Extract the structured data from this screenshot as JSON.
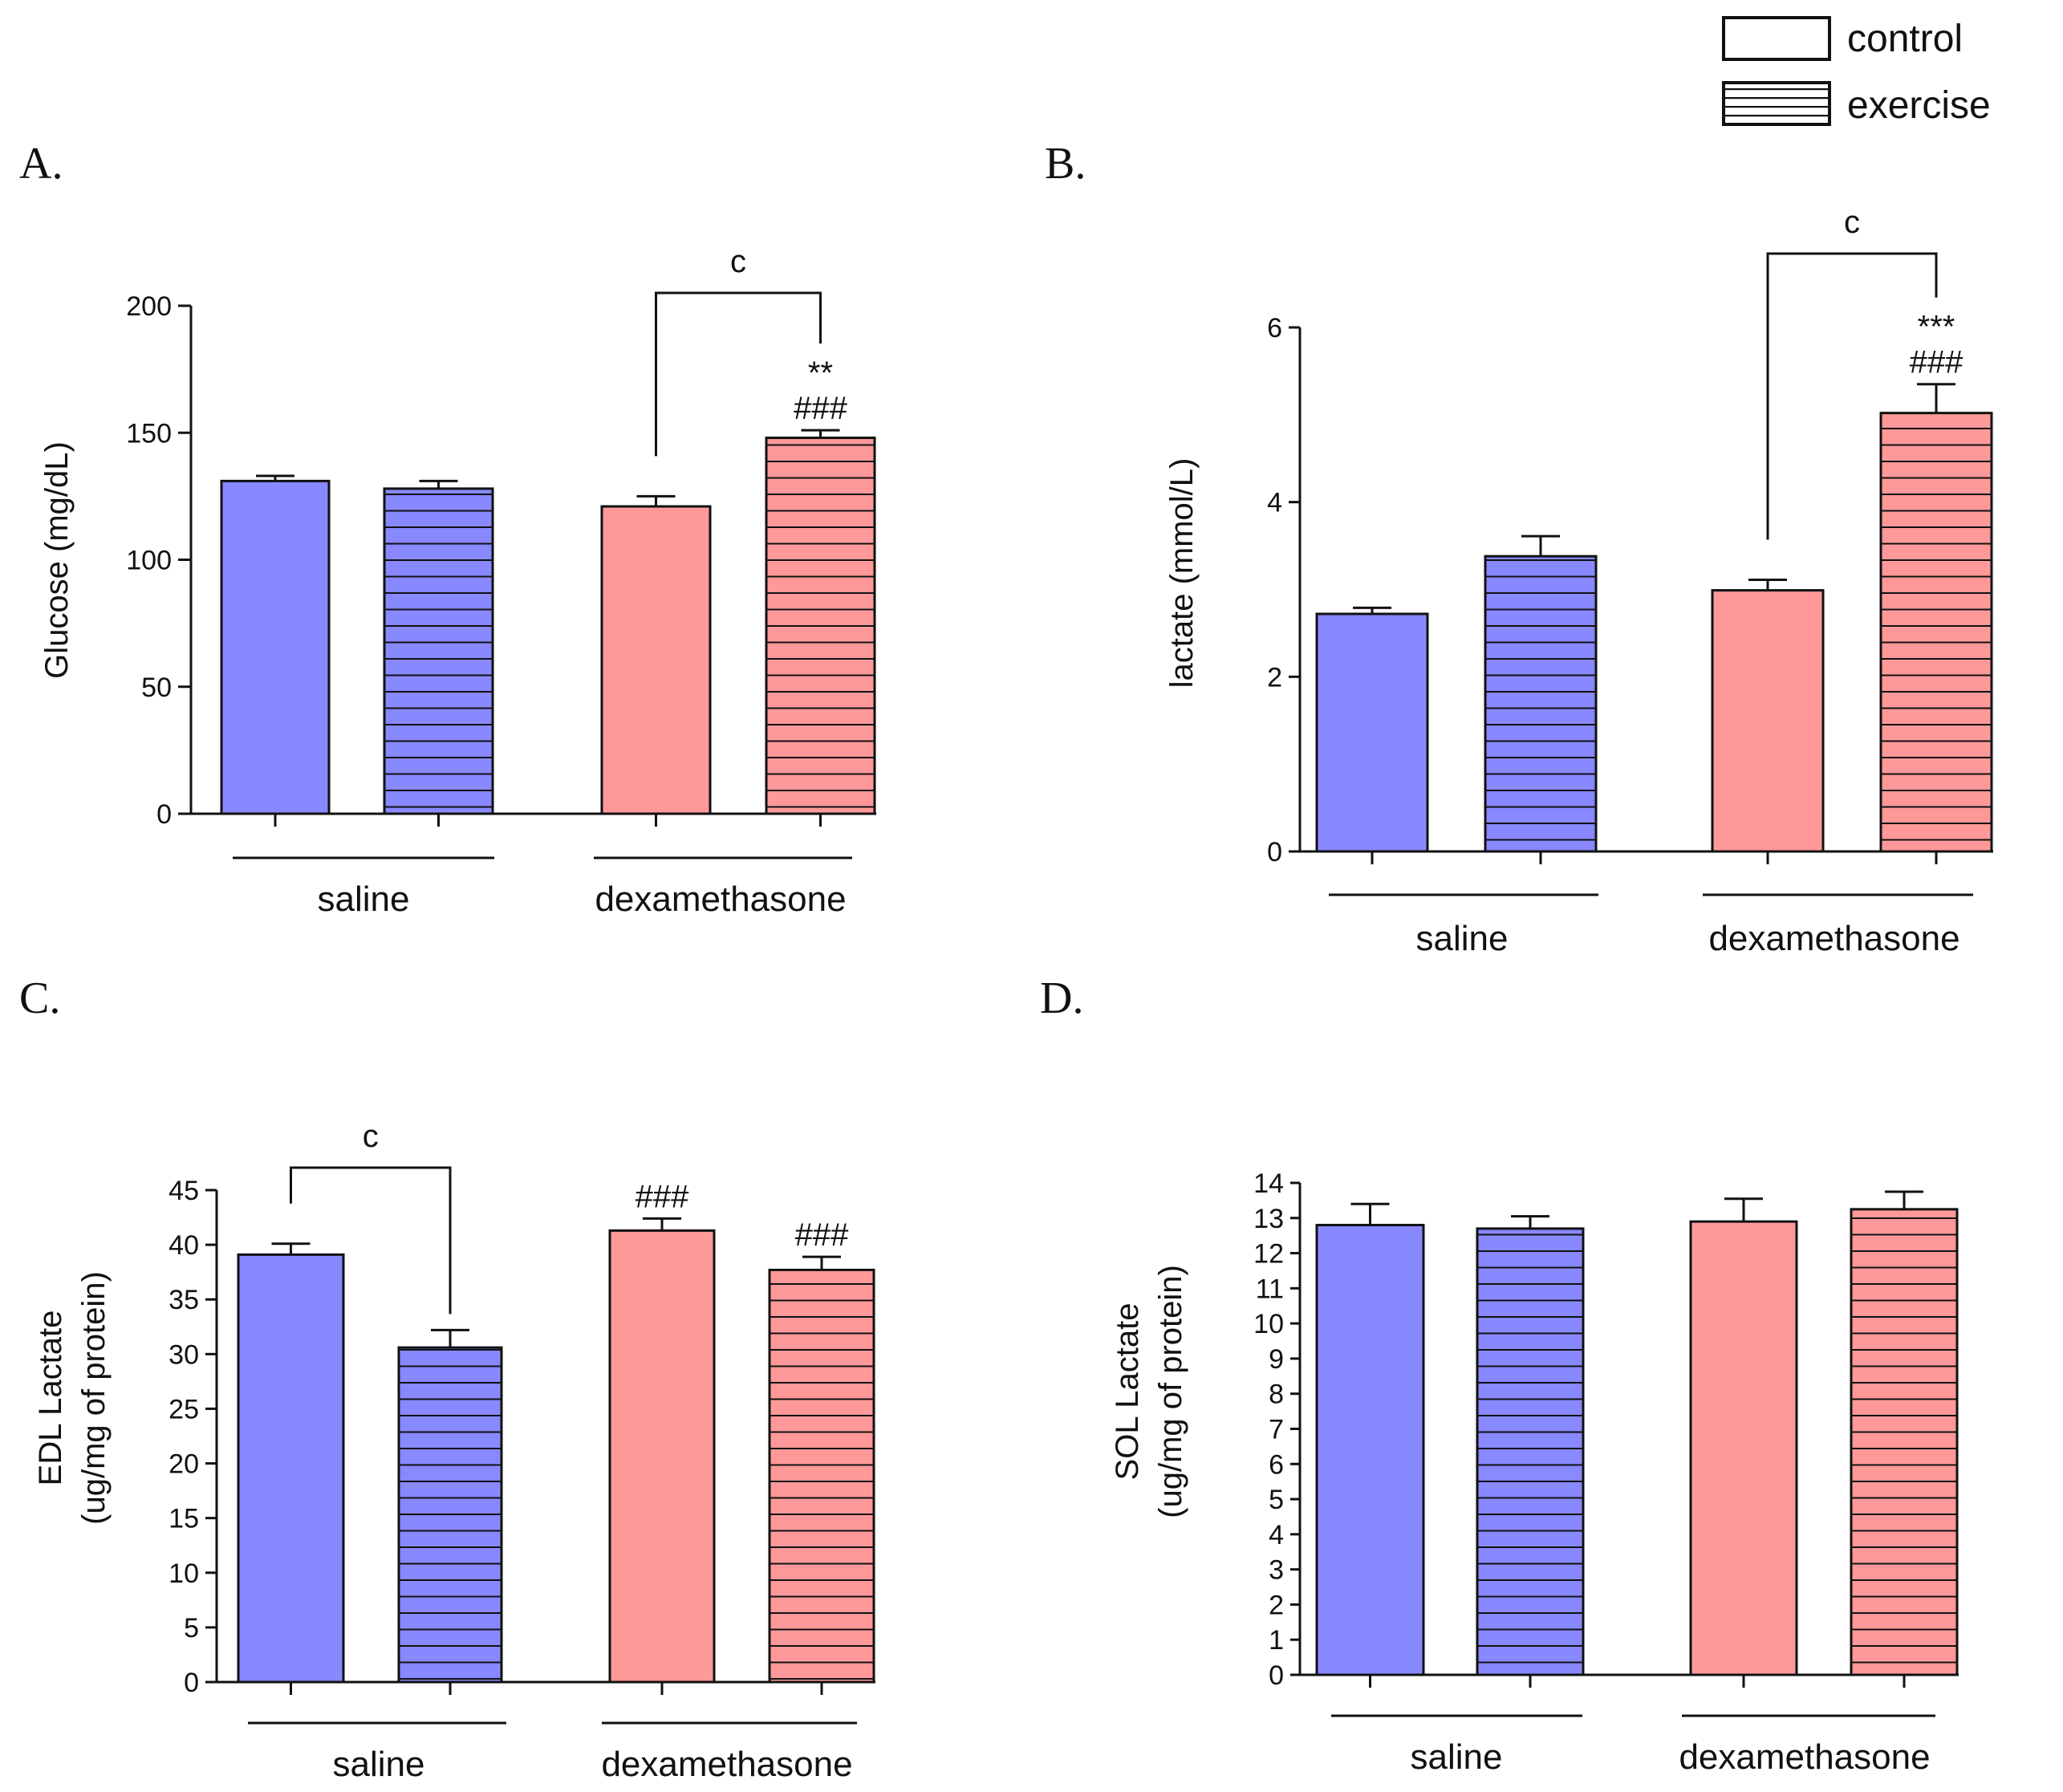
{
  "legend": {
    "items": [
      {
        "label": "control",
        "pattern": "solid"
      },
      {
        "label": "exercise",
        "pattern": "hatched"
      }
    ]
  },
  "colors": {
    "saline": "#8888ff",
    "dexamethasone": "#ff9999",
    "stroke": "#111111"
  },
  "groups": [
    "saline",
    "dexamethasone"
  ],
  "chart_data": [
    {
      "panel": "A.",
      "type": "bar",
      "ylabel": [
        "Glucose (mg/dL)"
      ],
      "ylim": [
        0,
        200
      ],
      "yticks": [
        0,
        50,
        100,
        150,
        200
      ],
      "groups": [
        "saline",
        "dexamethasone"
      ],
      "series": [
        {
          "name": "control"
        },
        {
          "name": "exercise"
        }
      ],
      "bars": [
        {
          "group": "saline",
          "series": "control",
          "value": 131,
          "error": 2
        },
        {
          "group": "saline",
          "series": "exercise",
          "value": 128,
          "error": 3
        },
        {
          "group": "dexamethasone",
          "series": "control",
          "value": 121,
          "error": 4
        },
        {
          "group": "dexamethasone",
          "series": "exercise",
          "value": 148,
          "error": 3
        }
      ],
      "annotations": [
        {
          "bar": 3,
          "lines": [
            "**",
            "###"
          ]
        }
      ],
      "brackets": [
        {
          "from": 2,
          "to": 3,
          "label": "c",
          "level": 200
        }
      ]
    },
    {
      "panel": "B.",
      "type": "bar",
      "ylabel": [
        "lactate (mmol/L)"
      ],
      "ylim": [
        0,
        6
      ],
      "yticks": [
        0,
        2,
        4,
        6
      ],
      "groups": [
        "saline",
        "dexamethasone"
      ],
      "series": [
        {
          "name": "control"
        },
        {
          "name": "exercise"
        }
      ],
      "bars": [
        {
          "group": "saline",
          "series": "control",
          "value": 2.72,
          "error": 0.07
        },
        {
          "group": "saline",
          "series": "exercise",
          "value": 3.38,
          "error": 0.23
        },
        {
          "group": "dexamethasone",
          "series": "control",
          "value": 2.99,
          "error": 0.12
        },
        {
          "group": "dexamethasone",
          "series": "exercise",
          "value": 5.02,
          "error": 0.33
        }
      ],
      "annotations": [
        {
          "bar": 3,
          "lines": [
            "***",
            "###"
          ]
        }
      ],
      "brackets": [
        {
          "from": 2,
          "to": 3,
          "label": "c",
          "level": 6.8
        }
      ]
    },
    {
      "panel": "C.",
      "type": "bar",
      "ylabel": [
        "EDL Lactate",
        "(ug/mg of protein)"
      ],
      "ylim": [
        0,
        45
      ],
      "yticks": [
        0,
        5,
        10,
        15,
        20,
        25,
        30,
        35,
        40,
        45
      ],
      "groups": [
        "saline",
        "dexamethasone"
      ],
      "series": [
        {
          "name": "control"
        },
        {
          "name": "exercise"
        }
      ],
      "bars": [
        {
          "group": "saline",
          "series": "control",
          "value": 39.1,
          "error": 1.0
        },
        {
          "group": "saline",
          "series": "exercise",
          "value": 30.6,
          "error": 1.6
        },
        {
          "group": "dexamethasone",
          "series": "control",
          "value": 41.3,
          "error": 1.1
        },
        {
          "group": "dexamethasone",
          "series": "exercise",
          "value": 37.7,
          "error": 1.2
        }
      ],
      "annotations": [
        {
          "bar": 2,
          "lines": [
            "###"
          ]
        },
        {
          "bar": 3,
          "lines": [
            "###"
          ]
        }
      ],
      "brackets": [
        {
          "from": 0,
          "to": 1,
          "label": "c",
          "level": 45
        }
      ]
    },
    {
      "panel": "D.",
      "type": "bar",
      "ylabel": [
        "SOL Lactate",
        "(ug/mg of protein)"
      ],
      "ylim": [
        0,
        14
      ],
      "yticks": [
        0,
        1,
        2,
        3,
        4,
        5,
        6,
        7,
        8,
        9,
        10,
        11,
        12,
        13,
        14
      ],
      "groups": [
        "saline",
        "dexamethasone"
      ],
      "series": [
        {
          "name": "control"
        },
        {
          "name": "exercise"
        }
      ],
      "bars": [
        {
          "group": "saline",
          "series": "control",
          "value": 12.8,
          "error": 0.6
        },
        {
          "group": "saline",
          "series": "exercise",
          "value": 12.7,
          "error": 0.35
        },
        {
          "group": "dexamethasone",
          "series": "control",
          "value": 12.9,
          "error": 0.65
        },
        {
          "group": "dexamethasone",
          "series": "exercise",
          "value": 13.25,
          "error": 0.5
        }
      ],
      "annotations": [],
      "brackets": []
    }
  ]
}
